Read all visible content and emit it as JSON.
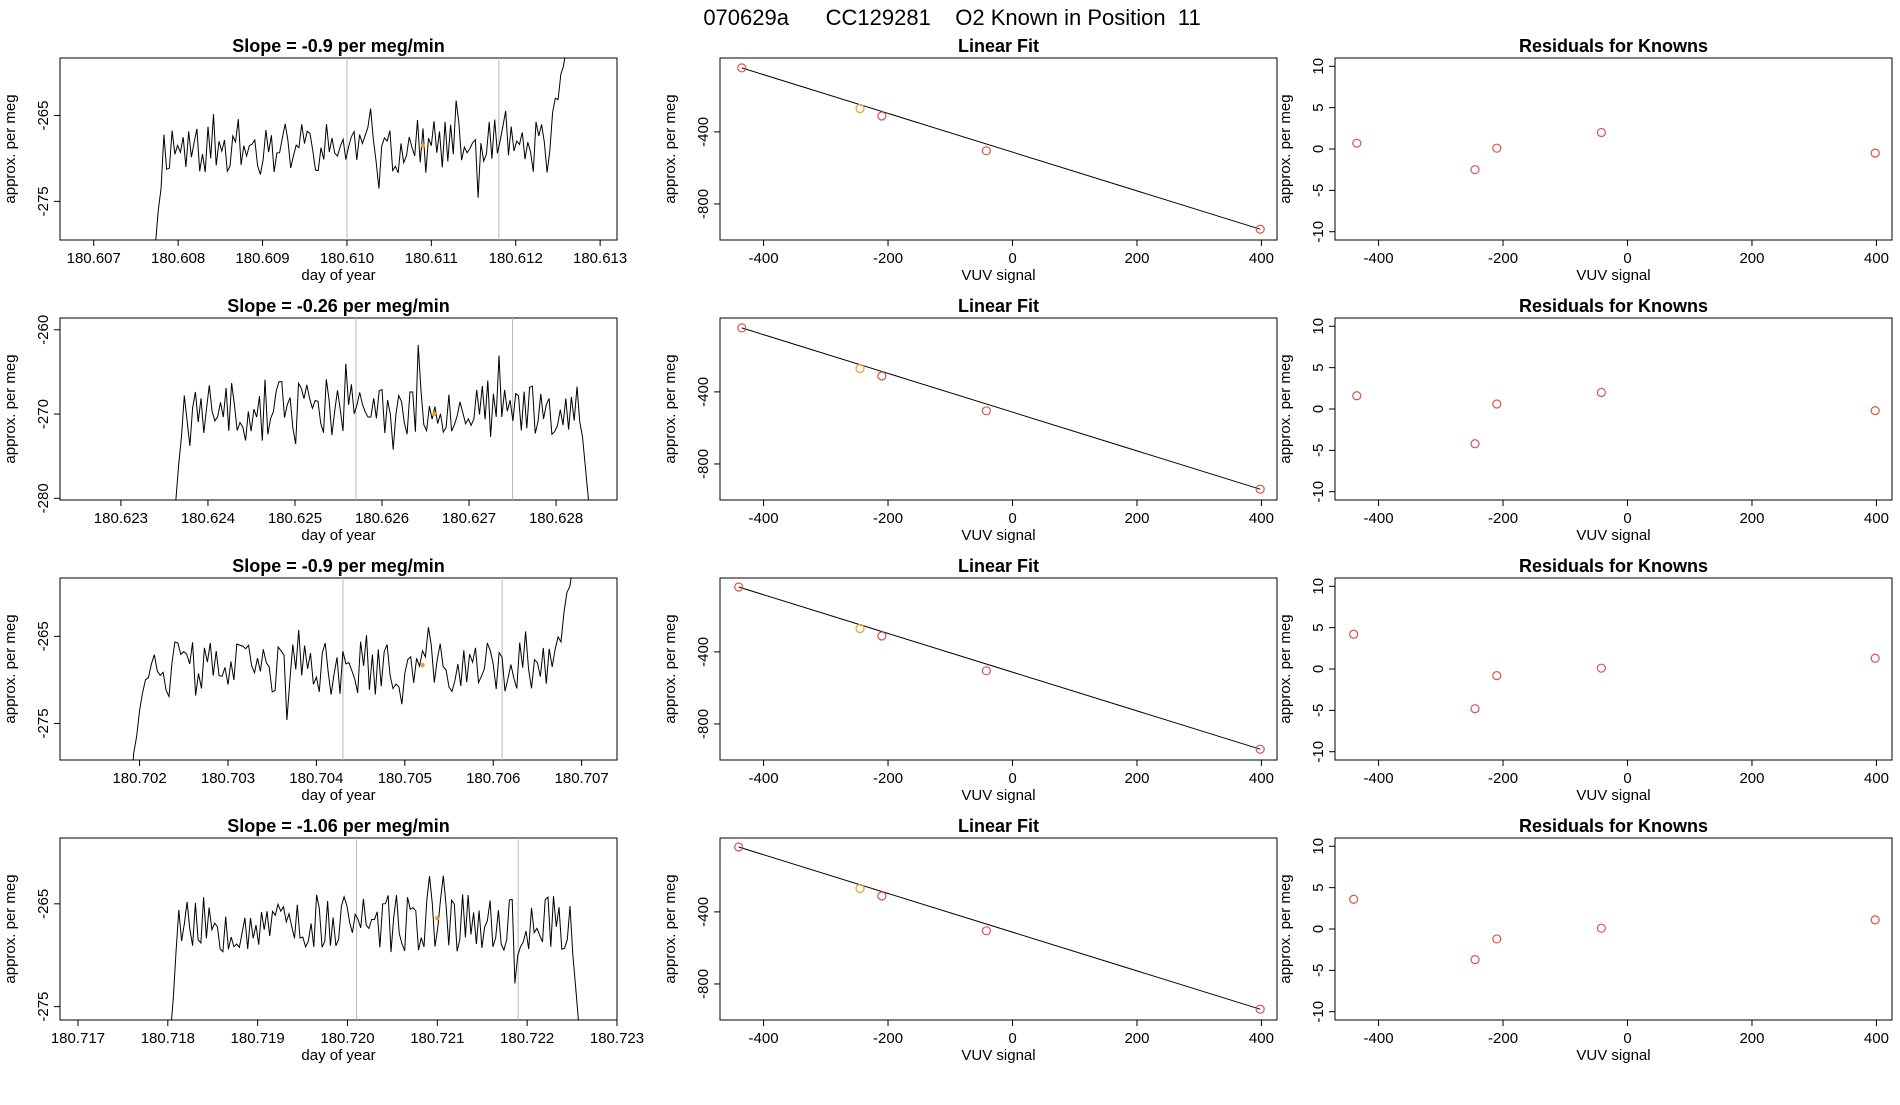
{
  "figure": {
    "title": "070629a      CC129281    O2 Known in Position  11"
  },
  "chart_data": [
    {
      "type": "line",
      "panel": "timeseries",
      "row": 1,
      "title": "Slope =  -0.9  per meg/min",
      "xlabel": "day of year",
      "ylabel": "approx. per meg",
      "xlim": [
        180.6066,
        180.6132
      ],
      "ylim": [
        -279.5,
        -258.3
      ],
      "xticks": [
        "180.607",
        "180.608",
        "180.609",
        "180.610",
        "180.611",
        "180.612",
        "180.613"
      ],
      "yticks": [
        -275,
        -265
      ],
      "vlines": [
        180.61,
        180.6118
      ],
      "marker": {
        "x": 180.6109,
        "y": -268.5,
        "color": "#e8a020"
      },
      "x_start": 180.6077,
      "x_end": 180.6126,
      "y_base": -268.6,
      "amplitude": 3.2,
      "seed": 11,
      "rise_start": 180.6124,
      "rise_to": -257
    },
    {
      "type": "scatter",
      "panel": "fit",
      "row": 1,
      "title": "Linear Fit",
      "xlabel": "VUV signal",
      "ylabel": "approx. per meg",
      "xlim": [
        -470,
        425
      ],
      "ylim": [
        -1000,
        10
      ],
      "xticks": [
        -400,
        -200,
        0,
        200,
        400
      ],
      "yticks": [
        -800,
        -400
      ],
      "points_x": [
        -435,
        -245,
        -210,
        -42,
        398
      ],
      "points_y": [
        -45,
        -270,
        -312,
        -505,
        -940
      ],
      "point_colors": [
        "#d9534f",
        "#e8a020",
        "#d9534f",
        "#d9534f",
        "#d9534f"
      ],
      "line": {
        "x0": -435,
        "y0": -45,
        "x1": 398,
        "y1": -940
      }
    },
    {
      "type": "scatter",
      "panel": "residuals",
      "row": 1,
      "title": "Residuals for Knowns",
      "xlabel": "VUV signal",
      "ylabel": "approx. per meg",
      "xlim": [
        -470,
        425
      ],
      "ylim": [
        -11,
        11
      ],
      "xticks": [
        -400,
        -200,
        0,
        200,
        400
      ],
      "yticks": [
        -10,
        -5,
        0,
        5,
        10
      ],
      "points_x": [
        -435,
        -245,
        -210,
        -42,
        398
      ],
      "points_y": [
        0.7,
        -2.5,
        0.1,
        2.0,
        -0.5
      ],
      "point_colors": [
        "#d9534f",
        "#d9534f",
        "#d9534f",
        "#d9534f",
        "#d9534f"
      ]
    },
    {
      "type": "line",
      "panel": "timeseries",
      "row": 2,
      "title": "Slope =  -0.26  per meg/min",
      "xlabel": "day of year",
      "ylabel": "approx. per meg",
      "xlim": [
        180.6223,
        180.6287
      ],
      "ylim": [
        -280.2,
        -258.6
      ],
      "xticks": [
        "180.623",
        "180.624",
        "180.625",
        "180.626",
        "180.627",
        "180.628"
      ],
      "yticks": [
        -280,
        -270,
        -260
      ],
      "vlines": [
        180.6257,
        180.6275
      ],
      "marker": {
        "x": 180.6266,
        "y": -270.0,
        "color": "#e8a020"
      },
      "x_start": 180.6236,
      "x_end": 180.6284,
      "y_base": -269.2,
      "amplitude": 3.3,
      "seed": 23,
      "rise_start": null,
      "rise_to": null
    },
    {
      "type": "scatter",
      "panel": "fit",
      "row": 2,
      "title": "Linear Fit",
      "xlabel": "VUV signal",
      "ylabel": "approx. per meg",
      "xlim": [
        -470,
        425
      ],
      "ylim": [
        -1000,
        10
      ],
      "xticks": [
        -400,
        -200,
        0,
        200,
        400
      ],
      "yticks": [
        -800,
        -400
      ],
      "points_x": [
        -435,
        -245,
        -210,
        -42,
        398
      ],
      "points_y": [
        -45,
        -270,
        -312,
        -505,
        -940
      ],
      "point_colors": [
        "#d9534f",
        "#e8a020",
        "#d9534f",
        "#d9534f",
        "#d9534f"
      ],
      "line": {
        "x0": -435,
        "y0": -45,
        "x1": 398,
        "y1": -940
      }
    },
    {
      "type": "scatter",
      "panel": "residuals",
      "row": 2,
      "title": "Residuals for Knowns",
      "xlabel": "VUV signal",
      "ylabel": "approx. per meg",
      "xlim": [
        -470,
        425
      ],
      "ylim": [
        -11,
        11
      ],
      "xticks": [
        -400,
        -200,
        0,
        200,
        400
      ],
      "yticks": [
        -10,
        -5,
        0,
        5,
        10
      ],
      "points_x": [
        -435,
        -245,
        -210,
        -42,
        398
      ],
      "points_y": [
        1.6,
        -4.2,
        0.6,
        2.0,
        -0.2
      ],
      "point_colors": [
        "#d9534f",
        "#d9534f",
        "#d9534f",
        "#d9534f",
        "#d9534f"
      ]
    },
    {
      "type": "line",
      "panel": "timeseries",
      "row": 3,
      "title": "Slope =  -0.9  per meg/min",
      "xlabel": "day of year",
      "ylabel": "approx. per meg",
      "xlim": [
        180.7011,
        180.7074
      ],
      "ylim": [
        -279.2,
        -258.3
      ],
      "xticks": [
        "180.702",
        "180.703",
        "180.704",
        "180.705",
        "180.706",
        "180.707"
      ],
      "yticks": [
        -275,
        -265
      ],
      "vlines": [
        180.7043,
        180.7061
      ],
      "marker": {
        "x": 180.7052,
        "y": -268.3,
        "color": "#e8a020"
      },
      "x_start": 180.7019,
      "x_end": 180.7069,
      "y_base": -268.7,
      "amplitude": 3.1,
      "seed": 37,
      "rise_start": 180.7067,
      "rise_to": -257
    },
    {
      "type": "scatter",
      "panel": "fit",
      "row": 3,
      "title": "Linear Fit",
      "xlabel": "VUV signal",
      "ylabel": "approx. per meg",
      "xlim": [
        -470,
        425
      ],
      "ylim": [
        -1000,
        10
      ],
      "xticks": [
        -400,
        -200,
        0,
        200,
        400
      ],
      "yticks": [
        -800,
        -400
      ],
      "points_x": [
        -440,
        -245,
        -210,
        -42,
        398
      ],
      "points_y": [
        -40,
        -270,
        -312,
        -505,
        -940
      ],
      "point_colors": [
        "#d9534f",
        "#e8a020",
        "#d9534f",
        "#d9534f",
        "#d9534f"
      ],
      "line": {
        "x0": -440,
        "y0": -40,
        "x1": 398,
        "y1": -940
      }
    },
    {
      "type": "scatter",
      "panel": "residuals",
      "row": 3,
      "title": "Residuals for Knowns",
      "xlabel": "VUV signal",
      "ylabel": "approx. per meg",
      "xlim": [
        -470,
        425
      ],
      "ylim": [
        -11,
        11
      ],
      "xticks": [
        -400,
        -200,
        0,
        200,
        400
      ],
      "yticks": [
        -10,
        -5,
        0,
        5,
        10
      ],
      "points_x": [
        -440,
        -245,
        -210,
        -42,
        398
      ],
      "points_y": [
        4.2,
        -4.8,
        -0.8,
        0.1,
        1.3
      ],
      "point_colors": [
        "#d9534f",
        "#d9534f",
        "#d9534f",
        "#d9534f",
        "#d9534f"
      ]
    },
    {
      "type": "line",
      "panel": "timeseries",
      "row": 4,
      "title": "Slope =  -1.06  per meg/min",
      "xlabel": "day of year",
      "ylabel": "approx. per meg",
      "xlim": [
        180.7168,
        180.723
      ],
      "ylim": [
        -276.3,
        -258.6
      ],
      "xticks": [
        "180.717",
        "180.718",
        "180.719",
        "180.720",
        "180.721",
        "180.722",
        "180.723"
      ],
      "yticks": [
        -275,
        -265
      ],
      "vlines": [
        180.7201,
        180.7219
      ],
      "marker": {
        "x": 180.721,
        "y": -266.4,
        "color": "#e8a020"
      },
      "x_start": 180.718,
      "x_end": 180.7226,
      "y_base": -266.8,
      "amplitude": 2.9,
      "seed": 53,
      "rise_start": null,
      "rise_to": null
    },
    {
      "type": "scatter",
      "panel": "fit",
      "row": 4,
      "title": "Linear Fit",
      "xlabel": "VUV signal",
      "ylabel": "approx. per meg",
      "xlim": [
        -470,
        425
      ],
      "ylim": [
        -1000,
        10
      ],
      "xticks": [
        -400,
        -200,
        0,
        200,
        400
      ],
      "yticks": [
        -800,
        -400
      ],
      "points_x": [
        -440,
        -245,
        -210,
        -42,
        398
      ],
      "points_y": [
        -40,
        -270,
        -312,
        -505,
        -940
      ],
      "point_colors": [
        "#d9534f",
        "#e8a020",
        "#d9534f",
        "#d9534f",
        "#d9534f"
      ],
      "line": {
        "x0": -440,
        "y0": -40,
        "x1": 398,
        "y1": -940
      }
    },
    {
      "type": "scatter",
      "panel": "residuals",
      "row": 4,
      "title": "Residuals for Knowns",
      "xlabel": "VUV signal",
      "ylabel": "approx. per meg",
      "xlim": [
        -470,
        425
      ],
      "ylim": [
        -11,
        11
      ],
      "xticks": [
        -400,
        -200,
        0,
        200,
        400
      ],
      "yticks": [
        -10,
        -5,
        0,
        5,
        10
      ],
      "points_x": [
        -440,
        -245,
        -210,
        -42,
        398
      ],
      "points_y": [
        3.6,
        -3.7,
        -1.2,
        0.1,
        1.1
      ],
      "point_colors": [
        "#d9534f",
        "#d9534f",
        "#d9534f",
        "#d9534f",
        "#d9534f"
      ]
    }
  ]
}
